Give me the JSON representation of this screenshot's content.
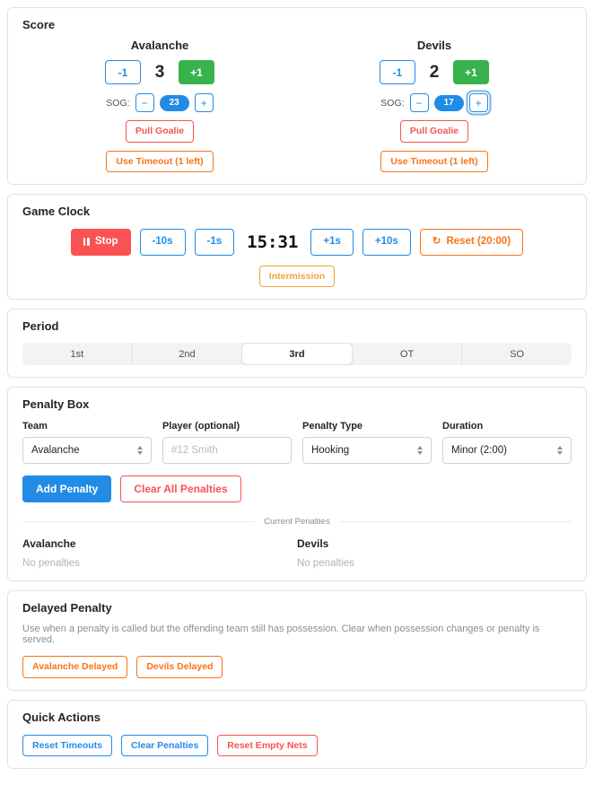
{
  "colors": {
    "blue": "#228be6",
    "green": "#37b24d",
    "red": "#fa5252",
    "orange": "#f97316",
    "yellow_orange": "#f2a33c",
    "border_gray": "#dee2e6",
    "track_gray": "#f1f3f5",
    "muted_text": "#868e96"
  },
  "icons": {
    "pause": "pause-icon",
    "reset_glyph": "↻"
  },
  "score": {
    "title": "Score",
    "minus_label": "-1",
    "plus_label": "+1",
    "sog_label": "SOG:",
    "sog_minus_label": "−",
    "sog_plus_label": "+",
    "teams": [
      {
        "name": "Avalanche",
        "score": "3",
        "sog": "23",
        "pull_goalie": "Pull Goalie",
        "timeout": "Use Timeout (1 left)"
      },
      {
        "name": "Devils",
        "score": "2",
        "sog": "17",
        "pull_goalie": "Pull Goalie",
        "timeout": "Use Timeout (1 left)"
      }
    ]
  },
  "game_clock": {
    "title": "Game Clock",
    "stop_label": "Stop",
    "minus10_label": "-10s",
    "minus1_label": "-1s",
    "time": "15:31",
    "plus1_label": "+1s",
    "plus10_label": "+10s",
    "reset_label": "Reset (20:00)",
    "intermission_label": "Intermission"
  },
  "period": {
    "title": "Period",
    "options": [
      "1st",
      "2nd",
      "3rd",
      "OT",
      "SO"
    ],
    "selected": "3rd"
  },
  "penalty_box": {
    "title": "Penalty Box",
    "fields": [
      {
        "label": "Team",
        "type": "select",
        "value": "Avalanche"
      },
      {
        "label": "Player (optional)",
        "type": "input",
        "placeholder": "#12 Smith"
      },
      {
        "label": "Penalty Type",
        "type": "select",
        "value": "Hooking"
      },
      {
        "label": "Duration",
        "type": "select",
        "value": "Minor (2:00)"
      }
    ],
    "add_label": "Add Penalty",
    "clear_label": "Clear All Penalties",
    "divider_label": "Current Penalties",
    "lists": [
      {
        "team": "Avalanche",
        "status": "No penalties"
      },
      {
        "team": "Devils",
        "status": "No penalties"
      }
    ]
  },
  "delayed_penalty": {
    "title": "Delayed Penalty",
    "description": "Use when a penalty is called but the offending team still has possession. Clear when possession changes or penalty is served.",
    "buttons": [
      "Avalanche Delayed",
      "Devils Delayed"
    ]
  },
  "quick_actions": {
    "title": "Quick Actions",
    "buttons": [
      "Reset Timeouts",
      "Clear Penalties",
      "Reset Empty Nets"
    ]
  }
}
